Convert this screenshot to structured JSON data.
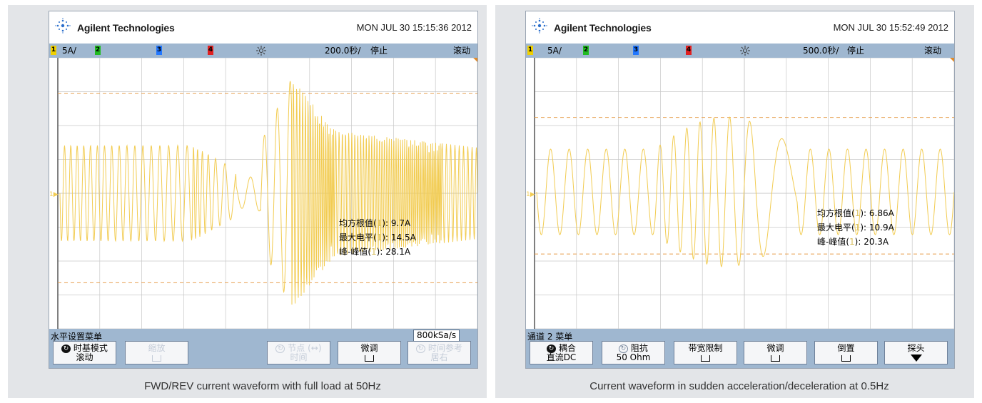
{
  "colors": {
    "trace": "#f2cc52",
    "gridline": "#c8c8c8",
    "statusbar": "#9fb7d0",
    "ch1": "#f0d000",
    "ch2": "#22bb22",
    "ch3": "#2277ff",
    "ch4": "#e02020"
  },
  "scopes": [
    {
      "brand": "Agilent Technologies",
      "datetime": "MON JUL 30 15:15:36 2012",
      "ch1_box": "1",
      "ch1_scale": "5A/",
      "ch2_box": "2",
      "ch3_box": "3",
      "ch4_box": "4",
      "trig_icon": "sun-trigger-icon",
      "timebase": "200.0秒/",
      "run_state": "停止",
      "mode": "滚动",
      "measurements": [
        {
          "label": "均方根值(",
          "ch": "1",
          "tail": "): 9.7A"
        },
        {
          "label": "最大电平(",
          "ch": "1",
          "tail": "): 14.5A"
        },
        {
          "label": "峰-峰值(",
          "ch": "1",
          "tail": "): 28.1A"
        }
      ],
      "menu_title": "水平设置菜单",
      "sample_rate": "800kSa/s",
      "softkeys": [
        {
          "l1": "时基模式",
          "l2": "滚动",
          "arrow": "↻",
          "dim": false
        },
        {
          "l1": "缩放",
          "l2": "",
          "check": true,
          "dim": true
        },
        {
          "l1": "",
          "l2": "",
          "empty": true
        },
        {
          "l1": "节点 (↔)",
          "l2": "时间",
          "arrow": "↻",
          "dim": true
        },
        {
          "l1": "微调",
          "l2": "",
          "check": true,
          "dim": false
        },
        {
          "l1": "时间参考",
          "l2": "居右",
          "arrow": "↻",
          "dim": true
        }
      ],
      "caption": "FWD/REV current waveform with full load at 50Hz",
      "cursor_lines_fraction": [
        0.132,
        0.83
      ],
      "ground_marker": "1▶"
    },
    {
      "brand": "Agilent Technologies",
      "datetime": "MON JUL 30 15:52:49 2012",
      "ch1_box": "1",
      "ch1_scale": "5A/",
      "ch2_box": "2",
      "ch3_box": "3",
      "ch4_box": "4",
      "trig_icon": "sun-trigger-icon",
      "timebase": "500.0秒/",
      "run_state": "停止",
      "mode": "滚动",
      "measurements": [
        {
          "label": "均方根值(",
          "ch": "1",
          "tail": "): 6.86A"
        },
        {
          "label": "最大电平(",
          "ch": "1",
          "tail": "): 10.9A"
        },
        {
          "label": "峰-峰值(",
          "ch": "1",
          "tail": "): 20.3A"
        }
      ],
      "menu_title": "通道 2 菜单",
      "sample_rate": "",
      "softkeys": [
        {
          "l1": "耦合",
          "l2": "直流DC",
          "arrow": "↻",
          "dim": false
        },
        {
          "l1": "阻抗",
          "l2": "50 Ohm",
          "arrow": "↻",
          "dim": false,
          "arrow_dim": true
        },
        {
          "l1": "带宽限制",
          "l2": "",
          "check": true,
          "dim": false
        },
        {
          "l1": "微调",
          "l2": "",
          "check": true,
          "dim": false
        },
        {
          "l1": "倒置",
          "l2": "",
          "check": true,
          "dim": false
        },
        {
          "l1": "探头",
          "l2": "",
          "down": true,
          "dim": false
        }
      ],
      "caption": "Current waveform in sudden acceleration/deceleration at 0.5Hz",
      "cursor_lines_fraction": [
        0.22,
        0.724
      ],
      "ground_marker": "1▶"
    }
  ]
}
